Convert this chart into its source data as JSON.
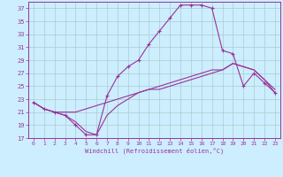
{
  "xlabel": "Windchill (Refroidissement éolien,°C)",
  "bg_color": "#cceeff",
  "grid_color": "#aacccc",
  "line_color": "#993399",
  "xlim": [
    -0.5,
    23.5
  ],
  "ylim": [
    17,
    38
  ],
  "xticks": [
    0,
    1,
    2,
    3,
    4,
    5,
    6,
    7,
    8,
    9,
    10,
    11,
    12,
    13,
    14,
    15,
    16,
    17,
    18,
    19,
    20,
    21,
    22,
    23
  ],
  "yticks": [
    17,
    19,
    21,
    23,
    25,
    27,
    29,
    31,
    33,
    35,
    37
  ],
  "series1": [
    [
      0,
      22.5
    ],
    [
      1,
      21.5
    ],
    [
      2,
      21.0
    ],
    [
      3,
      20.5
    ],
    [
      4,
      19.0
    ],
    [
      5,
      17.5
    ],
    [
      6,
      17.5
    ],
    [
      7,
      23.5
    ],
    [
      8,
      26.5
    ],
    [
      9,
      28.0
    ],
    [
      10,
      29.0
    ],
    [
      11,
      31.5
    ],
    [
      12,
      33.5
    ],
    [
      13,
      35.5
    ],
    [
      14,
      37.5
    ],
    [
      15,
      37.5
    ],
    [
      16,
      37.5
    ],
    [
      17,
      37.0
    ],
    [
      18,
      30.5
    ],
    [
      19,
      30.0
    ],
    [
      20,
      25.0
    ],
    [
      21,
      27.0
    ],
    [
      22,
      25.5
    ],
    [
      23,
      24.0
    ]
  ],
  "series2": [
    [
      0,
      22.5
    ],
    [
      1,
      21.5
    ],
    [
      2,
      21.0
    ],
    [
      3,
      21.0
    ],
    [
      4,
      21.0
    ],
    [
      5,
      21.5
    ],
    [
      6,
      22.0
    ],
    [
      7,
      22.5
    ],
    [
      8,
      23.0
    ],
    [
      9,
      23.5
    ],
    [
      10,
      24.0
    ],
    [
      11,
      24.5
    ],
    [
      12,
      24.5
    ],
    [
      13,
      25.0
    ],
    [
      14,
      25.5
    ],
    [
      15,
      26.0
    ],
    [
      16,
      26.5
    ],
    [
      17,
      27.0
    ],
    [
      18,
      27.5
    ],
    [
      19,
      28.5
    ],
    [
      20,
      28.0
    ],
    [
      21,
      27.5
    ],
    [
      22,
      26.0
    ],
    [
      23,
      24.0
    ]
  ],
  "series3": [
    [
      0,
      22.5
    ],
    [
      1,
      21.5
    ],
    [
      2,
      21.0
    ],
    [
      3,
      20.5
    ],
    [
      4,
      19.5
    ],
    [
      5,
      18.0
    ],
    [
      6,
      17.5
    ],
    [
      7,
      20.5
    ],
    [
      8,
      22.0
    ],
    [
      9,
      23.0
    ],
    [
      10,
      24.0
    ],
    [
      11,
      24.5
    ],
    [
      12,
      25.0
    ],
    [
      13,
      25.5
    ],
    [
      14,
      26.0
    ],
    [
      15,
      26.5
    ],
    [
      16,
      27.0
    ],
    [
      17,
      27.5
    ],
    [
      18,
      27.5
    ],
    [
      19,
      28.5
    ],
    [
      20,
      28.0
    ],
    [
      21,
      27.5
    ],
    [
      22,
      26.0
    ],
    [
      23,
      24.5
    ]
  ]
}
